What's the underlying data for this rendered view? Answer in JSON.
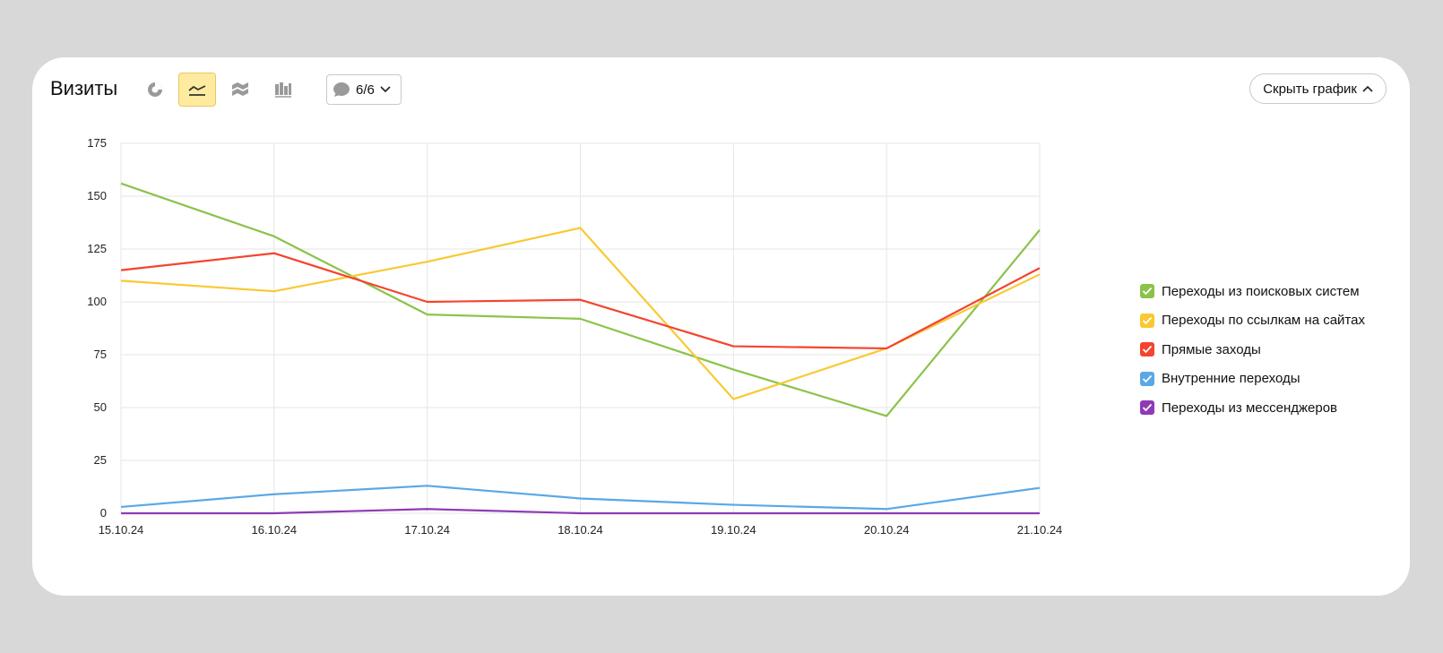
{
  "header": {
    "title": "Визиты",
    "counter_label": "6/6",
    "hide_chart_label": "Скрыть график"
  },
  "toolbar": {
    "icons": [
      "pie-chart-icon",
      "line-chart-icon",
      "stacked-area-icon",
      "stacked-bar-icon"
    ],
    "active": "line-chart-icon"
  },
  "chart_data": {
    "type": "line",
    "categories": [
      "15.10.24",
      "16.10.24",
      "17.10.24",
      "18.10.24",
      "19.10.24",
      "20.10.24",
      "21.10.24"
    ],
    "weekend_categories": [
      "19.10.24",
      "20.10.24"
    ],
    "ylim": [
      0,
      175
    ],
    "yticks": [
      0,
      25,
      50,
      75,
      100,
      125,
      150,
      175
    ],
    "grid": true,
    "legend_position": "right",
    "series": [
      {
        "name": "Переходы из поисковых систем",
        "color": "#8bc34a",
        "values": [
          156,
          131,
          94,
          92,
          68,
          46,
          134
        ]
      },
      {
        "name": "Переходы по ссылкам на сайтах",
        "color": "#f9c933",
        "values": [
          110,
          105,
          119,
          135,
          54,
          78,
          113
        ]
      },
      {
        "name": "Прямые заходы",
        "color": "#f4442e",
        "values": [
          115,
          123,
          100,
          101,
          79,
          78,
          116
        ]
      },
      {
        "name": "Внутренние переходы",
        "color": "#5aa8e6",
        "values": [
          3,
          9,
          13,
          7,
          4,
          2,
          12
        ]
      },
      {
        "name": "Переходы из мессенджеров",
        "color": "#8e3ab5",
        "values": [
          0,
          0,
          2,
          0,
          0,
          0,
          0
        ]
      }
    ]
  },
  "colors": {
    "weekend_label": "#c62828",
    "active_tool_bg": "#ffeba0"
  }
}
